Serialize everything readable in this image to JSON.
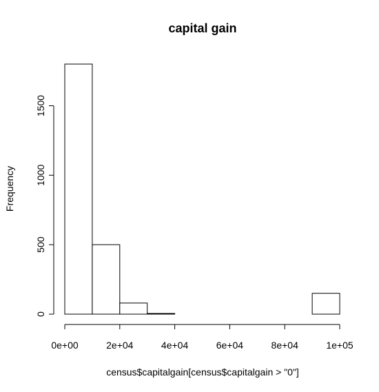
{
  "chart_data": {
    "type": "bar",
    "title": "capital gain",
    "xlabel": "census$capitalgain[census$capitalgain > \"0\"]",
    "ylabel": "Frequency",
    "bins": [
      {
        "from": 0,
        "to": 10000,
        "count": 1800
      },
      {
        "from": 10000,
        "to": 20000,
        "count": 500
      },
      {
        "from": 20000,
        "to": 30000,
        "count": 80
      },
      {
        "from": 30000,
        "to": 40000,
        "count": 5
      },
      {
        "from": 40000,
        "to": 50000,
        "count": 0
      },
      {
        "from": 50000,
        "to": 60000,
        "count": 0
      },
      {
        "from": 60000,
        "to": 70000,
        "count": 0
      },
      {
        "from": 70000,
        "to": 80000,
        "count": 0
      },
      {
        "from": 80000,
        "to": 90000,
        "count": 0
      },
      {
        "from": 90000,
        "to": 100000,
        "count": 150
      }
    ],
    "xlim": [
      0,
      100000
    ],
    "ylim": [
      0,
      1800
    ],
    "x_ticks": [
      {
        "value": 0,
        "label": "0e+00"
      },
      {
        "value": 20000,
        "label": "2e+04"
      },
      {
        "value": 40000,
        "label": "4e+04"
      },
      {
        "value": 60000,
        "label": "6e+04"
      },
      {
        "value": 80000,
        "label": "8e+04"
      },
      {
        "value": 100000,
        "label": "1e+05"
      }
    ],
    "y_ticks": [
      {
        "value": 0,
        "label": "0"
      },
      {
        "value": 500,
        "label": "500"
      },
      {
        "value": 1000,
        "label": "1000"
      },
      {
        "value": 1500,
        "label": "1500"
      }
    ],
    "grid": false,
    "legend": "none",
    "colors": {
      "bar_fill": "#ffffff",
      "bar_stroke": "#000000",
      "text": "#000000"
    }
  }
}
